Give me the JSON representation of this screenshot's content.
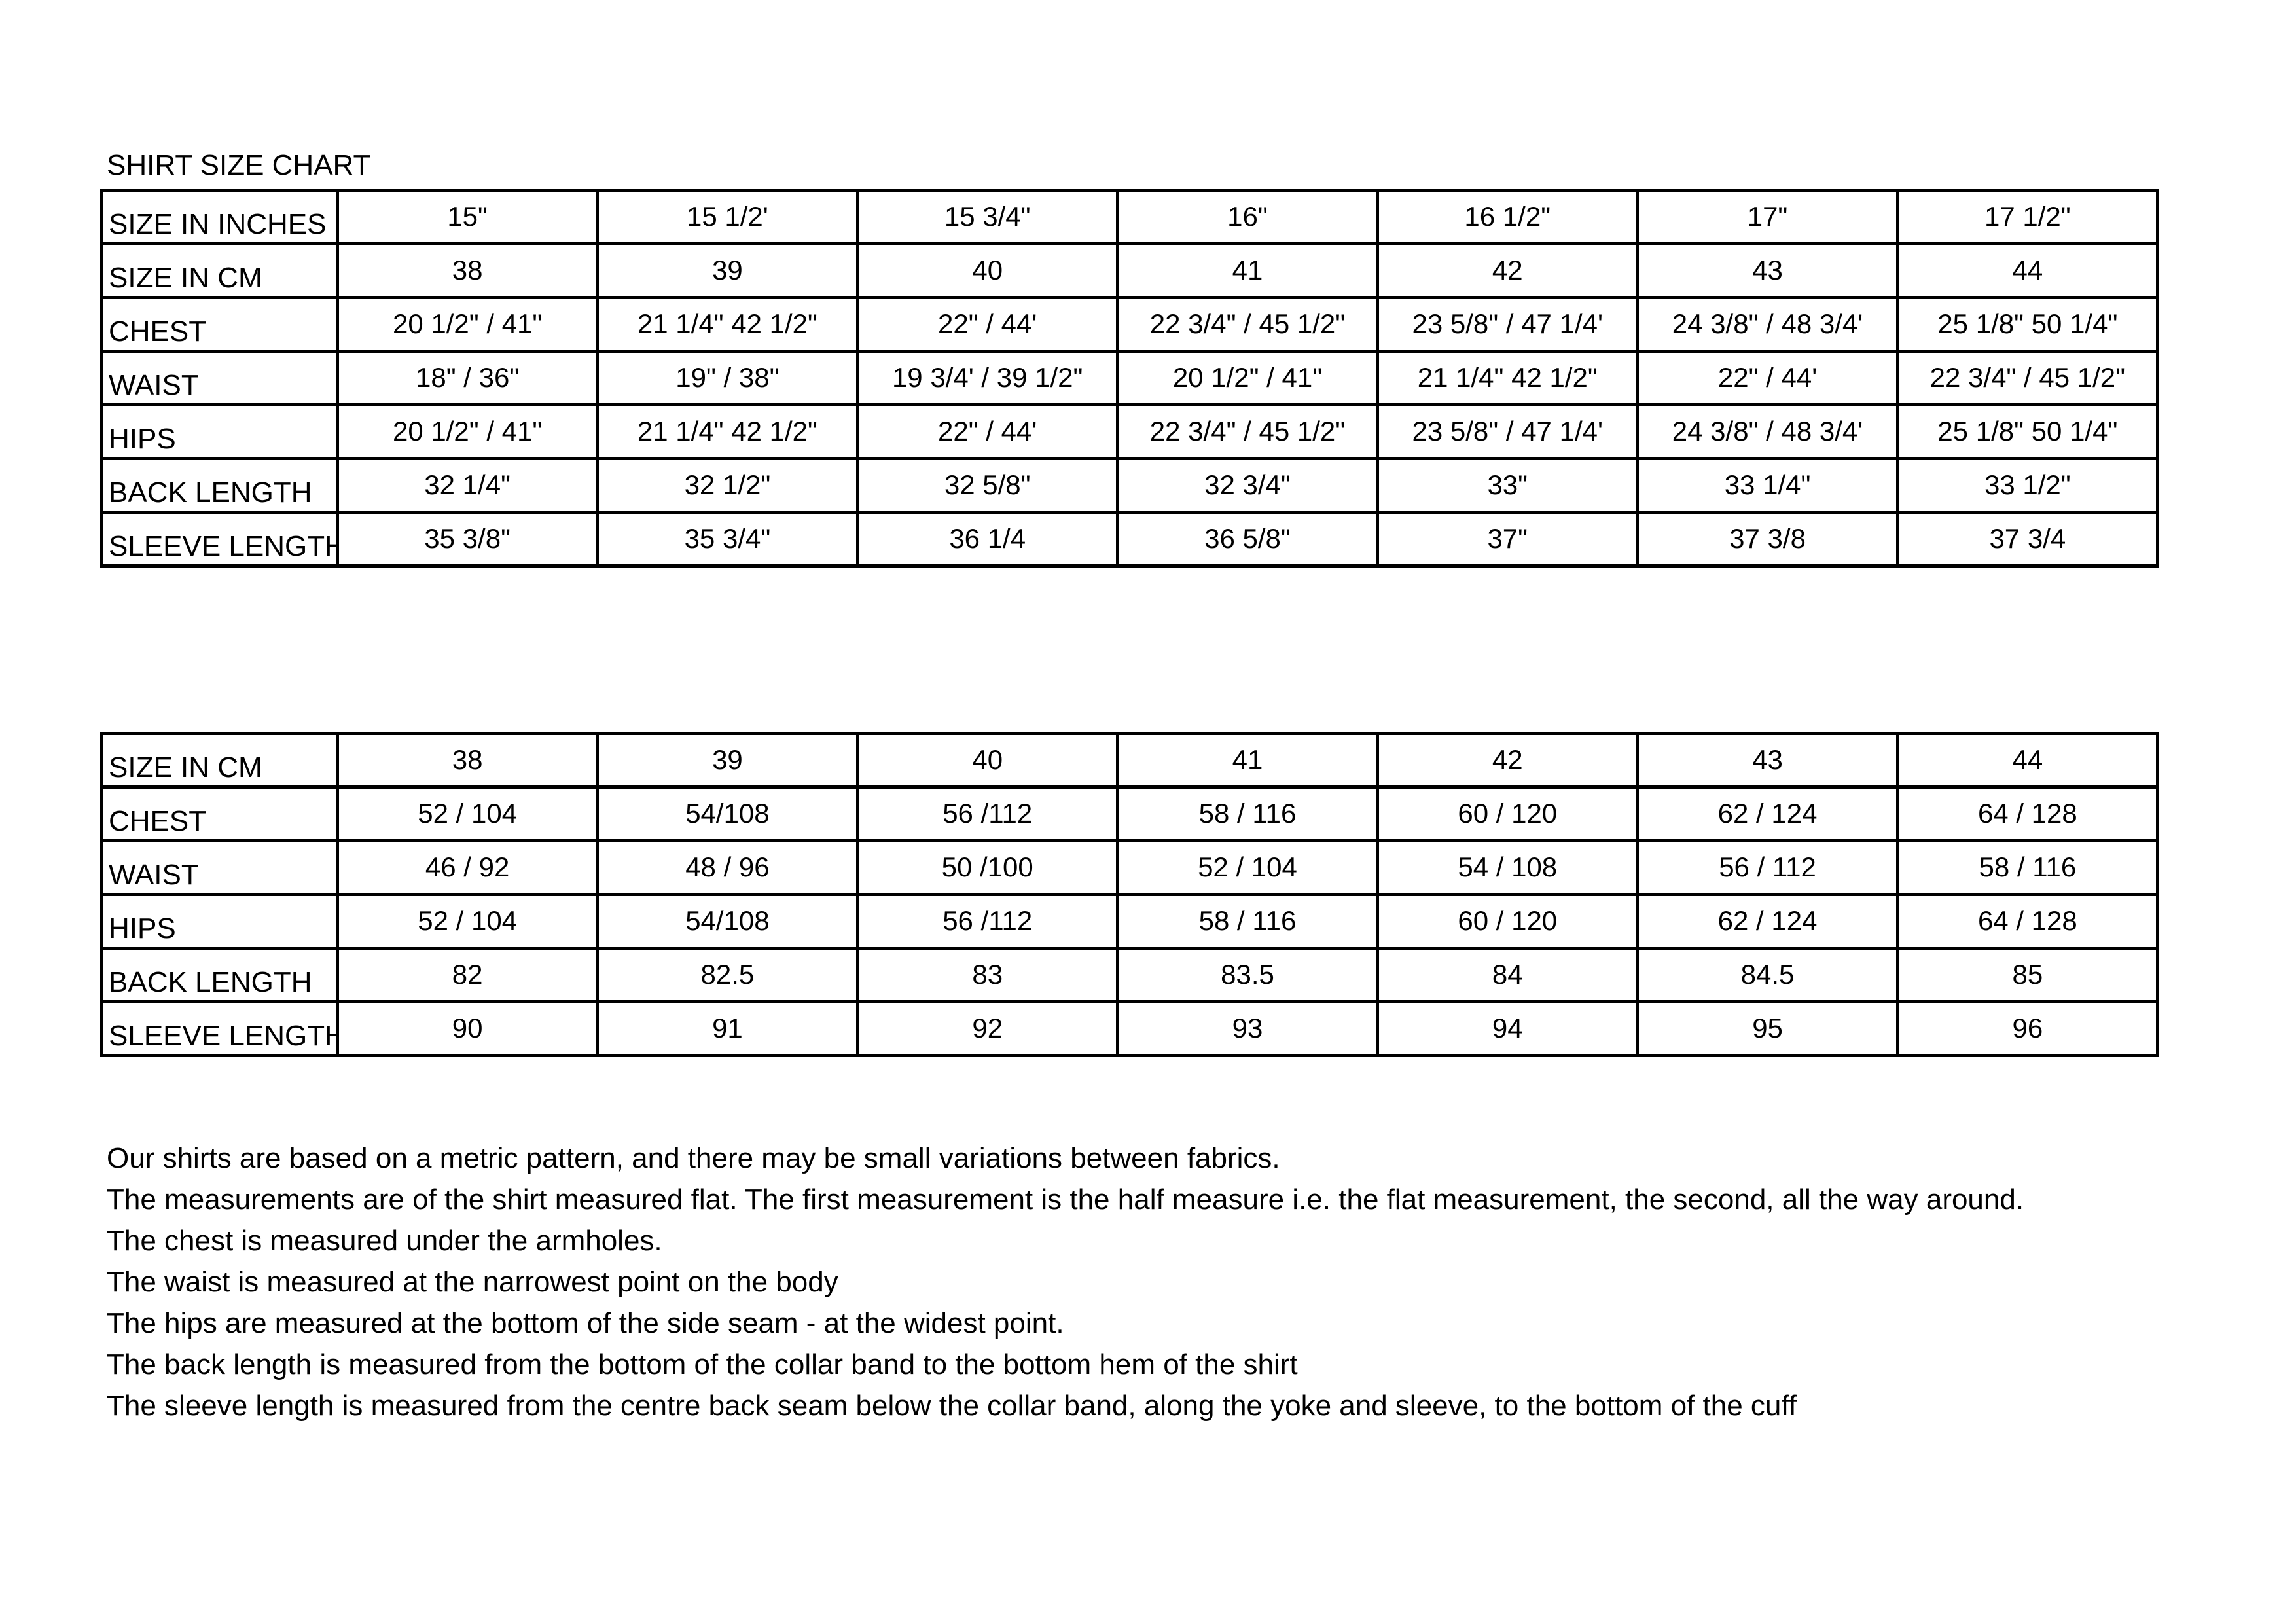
{
  "title": "SHIRT SIZE CHART",
  "table_inches": {
    "rows": [
      {
        "label": "SIZE IN INCHES",
        "values": [
          "15\"",
          "15 1/2'",
          "15 3/4\"",
          "16\"",
          "16 1/2\"",
          "17\"",
          "17 1/2\""
        ]
      },
      {
        "label": "SIZE IN CM",
        "values": [
          "38",
          "39",
          "40",
          "41",
          "42",
          "43",
          "44"
        ]
      },
      {
        "label": "CHEST",
        "values": [
          "20 1/2\" / 41\"",
          "21 1/4\" 42 1/2\"",
          "22\" / 44'",
          "22 3/4\" / 45 1/2\"",
          "23 5/8\" / 47 1/4'",
          "24 3/8\" / 48 3/4'",
          "25 1/8\" 50 1/4\""
        ]
      },
      {
        "label": "WAIST",
        "values": [
          "18\" / 36\"",
          "19\" / 38\"",
          "19 3/4' / 39 1/2\"",
          "20 1/2\" / 41\"",
          "21 1/4\" 42 1/2\"",
          "22\" / 44'",
          "22 3/4\" / 45 1/2\""
        ]
      },
      {
        "label": "HIPS",
        "values": [
          "20 1/2\" / 41\"",
          "21 1/4\" 42 1/2\"",
          "22\" / 44'",
          "22 3/4\" / 45 1/2\"",
          "23 5/8\" / 47 1/4'",
          "24 3/8\" / 48 3/4'",
          "25 1/8\" 50 1/4\""
        ]
      },
      {
        "label": "BACK LENGTH",
        "values": [
          "32 1/4\"",
          "32 1/2\"",
          "32 5/8\"",
          "32 3/4\"",
          "33\"",
          "33 1/4\"",
          "33 1/2\""
        ]
      },
      {
        "label": "SLEEVE LENGTH",
        "values": [
          "35 3/8\"",
          "35 3/4\"",
          "36 1/4",
          "36 5/8\"",
          "37\"",
          "37 3/8",
          "37 3/4"
        ]
      }
    ]
  },
  "table_cm": {
    "rows": [
      {
        "label": "SIZE IN CM",
        "values": [
          "38",
          "39",
          "40",
          "41",
          "42",
          "43",
          "44"
        ]
      },
      {
        "label": "CHEST",
        "values": [
          "52 / 104",
          "54/108",
          "56 /112",
          "58 / 116",
          "60 / 120",
          "62 / 124",
          "64 / 128"
        ]
      },
      {
        "label": "WAIST",
        "values": [
          "46 / 92",
          "48 / 96",
          "50 /100",
          "52 / 104",
          "54 / 108",
          "56 / 112",
          "58 / 116"
        ]
      },
      {
        "label": "HIPS",
        "values": [
          "52 / 104",
          "54/108",
          "56 /112",
          "58 / 116",
          "60 / 120",
          "62 / 124",
          "64 / 128"
        ]
      },
      {
        "label": "BACK LENGTH",
        "values": [
          "82",
          "82.5",
          "83",
          "83.5",
          "84",
          "84.5",
          "85"
        ]
      },
      {
        "label": "SLEEVE LENGTH",
        "values": [
          "90",
          "91",
          "92",
          "93",
          "94",
          "95",
          "96"
        ]
      }
    ]
  },
  "notes": [
    "Our shirts are based on a metric pattern, and there may be small variations between fabrics.",
    "The measurements are of the shirt measured flat. The first measurement is the half measure i.e. the flat measurement, the second, all the way around.",
    "The chest is measured under the armholes.",
    "The waist is measured at the narrowest point on the body",
    "The hips are measured at the bottom of the side seam - at the widest point.",
    "The back length is measured from the bottom of the collar band to the bottom hem of the shirt",
    "The sleeve length is measured from the centre back seam below the collar band, along the yoke and sleeve, to the bottom of the cuff"
  ]
}
